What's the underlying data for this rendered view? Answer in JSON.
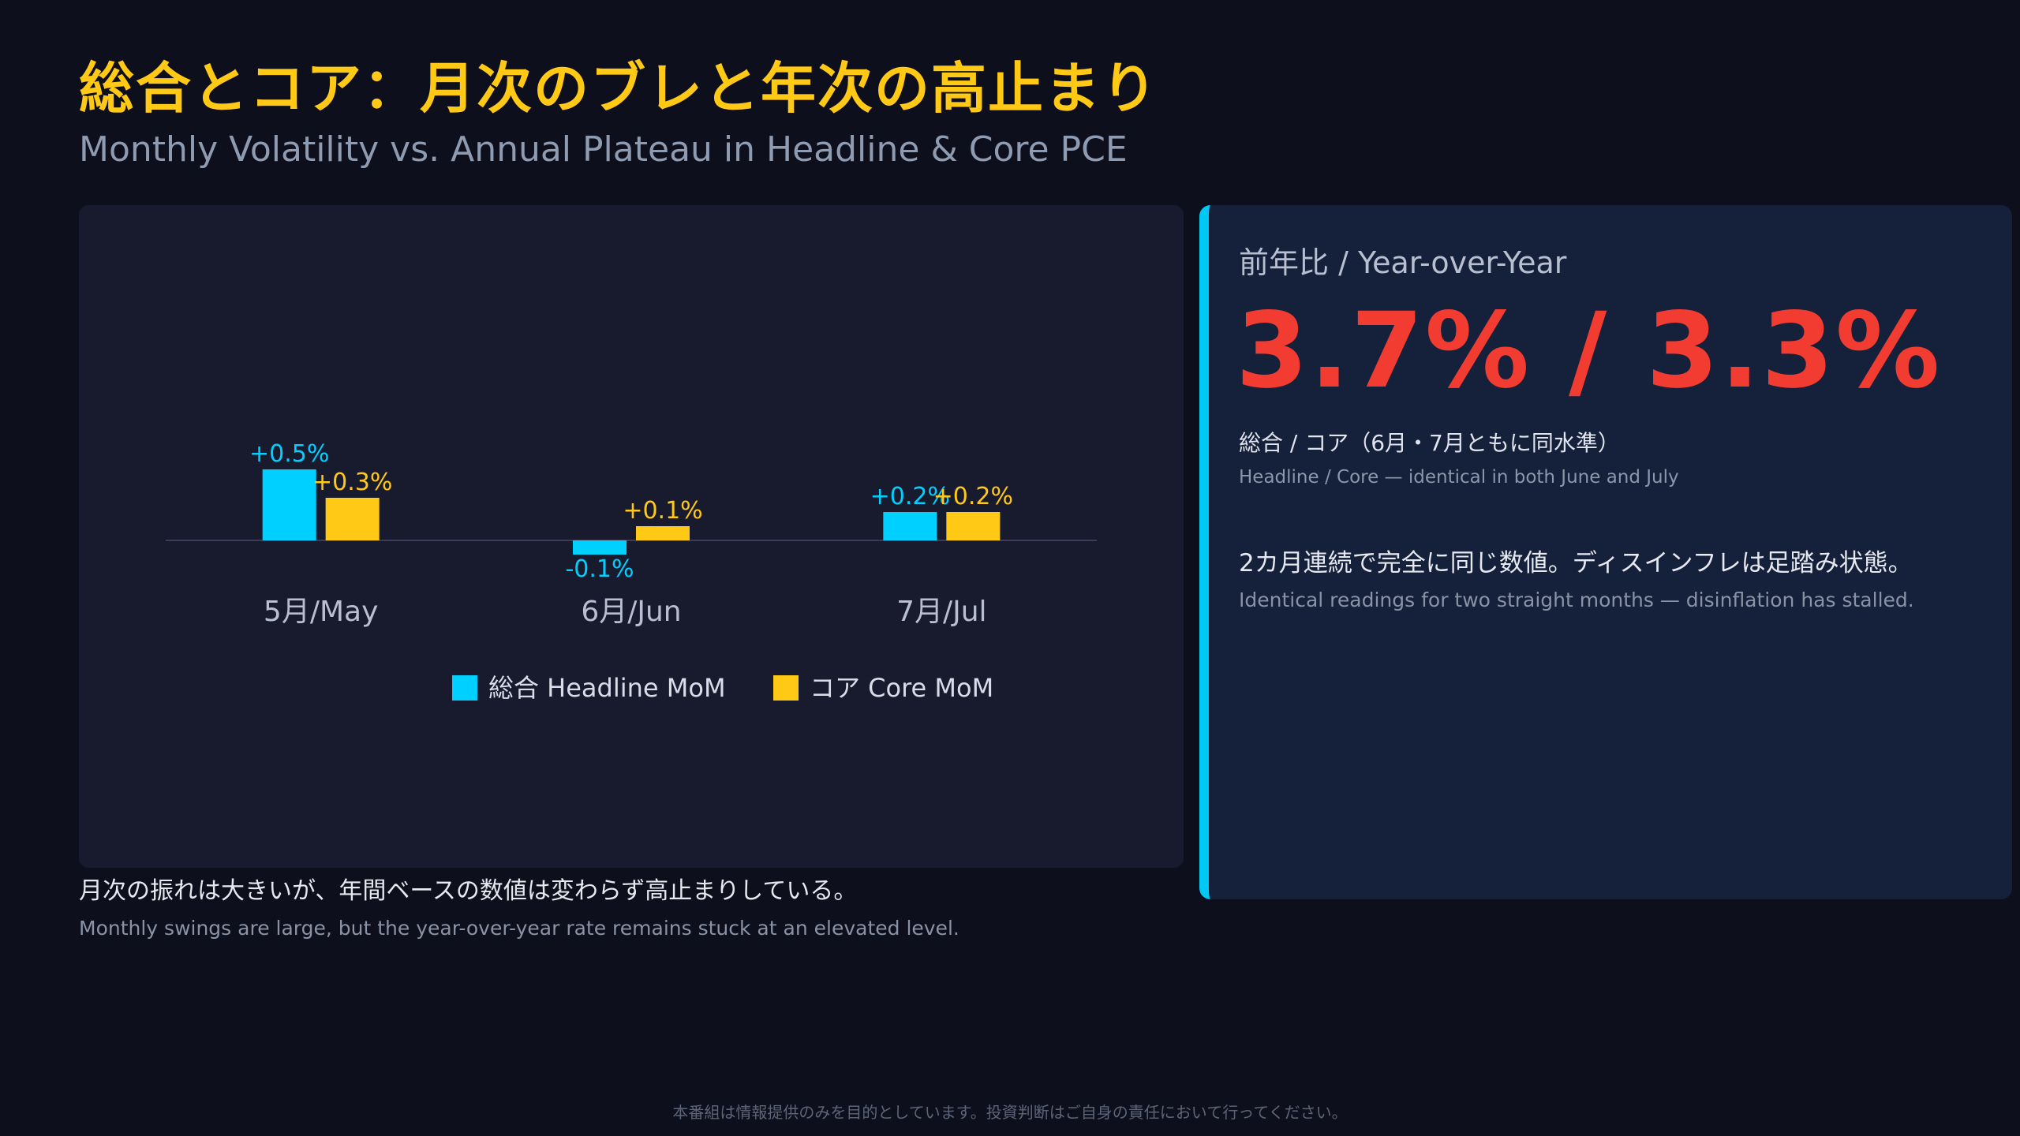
{
  "title": "総合とコア：月次のブレと年次の高止まり",
  "subtitle": "Monthly Volatility vs. Annual Plateau in Headline & Core PCE",
  "colors": {
    "headline": "#00d0ff",
    "core": "#ffc915",
    "yoy_value": "#f23c32",
    "accent_border": "#00c8f5"
  },
  "chart_data": {
    "type": "bar",
    "categories": [
      "5月/May",
      "6月/Jun",
      "7月/Jul"
    ],
    "series": [
      {
        "name": "総合 Headline MoM",
        "values": [
          0.5,
          -0.1,
          0.2
        ],
        "labels": [
          "+0.5%",
          "-0.1%",
          "+0.2%"
        ]
      },
      {
        "name": "コア Core MoM",
        "values": [
          0.3,
          0.1,
          0.2
        ],
        "labels": [
          "+0.3%",
          "+0.1%",
          "+0.2%"
        ]
      }
    ],
    "legend": "bottom-center",
    "grid": false,
    "ylim": [
      -0.3,
      0.8
    ]
  },
  "notes": {
    "jp": "月次の振れは大きいが、年間ベースの数値は変わらず高止まりしている。",
    "en": "Monthly swings are large, but the year-over-year rate remains stuck at an elevated level."
  },
  "yoy": {
    "label": "前年比 / Year-over-Year",
    "value": "3.7% / 3.3%",
    "caption_jp": "総合 / コア（6月・7月ともに同水準）",
    "caption_en": "Headline / Core — identical in both June and July",
    "desc_jp": "2カ月連続で完全に同じ数値。ディスインフレは足踏み状態。",
    "desc_en": "Identical readings for two straight months — disinflation has stalled."
  },
  "disclaimer": "本番組は情報提供のみを目的としています。投資判断はご自身の責任において行ってください。"
}
